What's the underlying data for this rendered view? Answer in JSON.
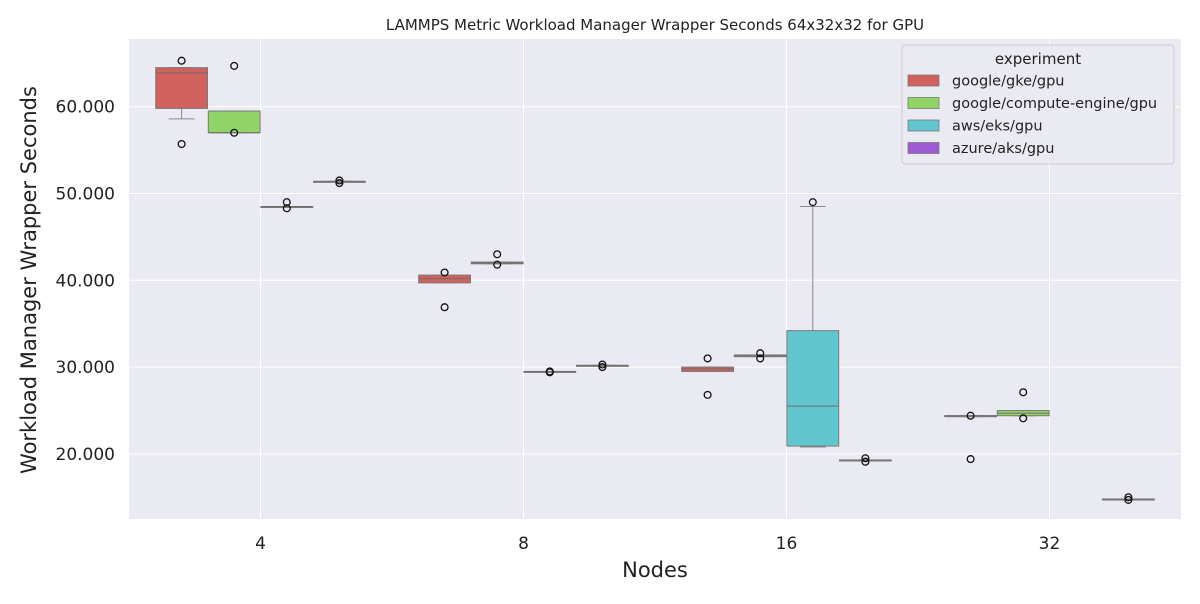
{
  "chart_data": {
    "type": "box",
    "title": "LAMMPS Metric Workload Manager Wrapper Seconds 64x32x32 for GPU",
    "xlabel": "Nodes",
    "ylabel": "Workload Manager Wrapper Seconds",
    "categories": [
      "4",
      "8",
      "16",
      "32"
    ],
    "ylim": [
      12.5,
      67.8
    ],
    "yticks": [
      20,
      30,
      40,
      50,
      60
    ],
    "ytick_labels": [
      "20.000",
      "30.000",
      "40.000",
      "50.000",
      "60.000"
    ],
    "grid": true,
    "legend": {
      "title": "experiment",
      "placement": "top-right"
    },
    "series": [
      {
        "name": "google/gke/gpu",
        "color": "#d1615d",
        "boxes": [
          {
            "category": "4",
            "q1": 59.8,
            "median": 63.9,
            "q3": 64.5,
            "whislo": 58.6,
            "whishi": 64.5,
            "fliers": [
              55.7,
              65.3
            ]
          },
          {
            "category": "8",
            "q1": 39.7,
            "median": 40.2,
            "q3": 40.6,
            "whislo": 39.7,
            "whishi": 40.6,
            "fliers": [
              36.9,
              40.9
            ]
          },
          {
            "category": "16",
            "q1": 29.5,
            "median": 29.8,
            "q3": 30.0,
            "whislo": 29.5,
            "whishi": 30.0,
            "fliers": [
              26.8,
              31.0
            ]
          },
          {
            "category": "32",
            "q1": 24.3,
            "median": 24.4,
            "q3": 24.4,
            "whislo": 24.3,
            "whishi": 24.4,
            "fliers": [
              19.4,
              24.4
            ]
          }
        ]
      },
      {
        "name": "google/compute-engine/gpu",
        "color": "#8fd464",
        "boxes": [
          {
            "category": "4",
            "q1": 57.0,
            "median": 57.0,
            "q3": 59.5,
            "whislo": 57.0,
            "whishi": 59.5,
            "fliers": [
              57.0,
              64.7
            ]
          },
          {
            "category": "8",
            "q1": 41.9,
            "median": 42.0,
            "q3": 42.1,
            "whislo": 41.9,
            "whishi": 42.1,
            "fliers": [
              41.8,
              43.0
            ]
          },
          {
            "category": "16",
            "q1": 31.2,
            "median": 31.3,
            "q3": 31.4,
            "whislo": 31.2,
            "whishi": 31.4,
            "fliers": [
              31.0,
              31.6
            ]
          },
          {
            "category": "32",
            "q1": 24.4,
            "median": 24.7,
            "q3": 25.0,
            "whislo": 24.4,
            "whishi": 25.0,
            "fliers": [
              24.1,
              27.1
            ]
          }
        ]
      },
      {
        "name": "aws/eks/gpu",
        "color": "#62c6cf",
        "boxes": [
          {
            "category": "4",
            "q1": 48.5,
            "median": 48.5,
            "q3": 48.5,
            "whislo": 48.5,
            "whishi": 48.5,
            "fliers": [
              48.3,
              49.0
            ]
          },
          {
            "category": "8",
            "q1": 29.5,
            "median": 29.5,
            "q3": 29.5,
            "whislo": 29.5,
            "whishi": 29.5,
            "fliers": [
              29.4,
              29.5
            ]
          },
          {
            "category": "16",
            "q1": 20.9,
            "median": 25.5,
            "q3": 34.2,
            "whislo": 20.8,
            "whishi": 48.5,
            "fliers": [
              49.0
            ]
          }
        ]
      },
      {
        "name": "azure/aks/gpu",
        "color": "#9e5ad0",
        "boxes": [
          {
            "category": "4",
            "q1": 51.4,
            "median": 51.4,
            "q3": 51.4,
            "whislo": 51.4,
            "whishi": 51.4,
            "fliers": [
              51.2,
              51.5
            ]
          },
          {
            "category": "8",
            "q1": 30.2,
            "median": 30.2,
            "q3": 30.2,
            "whislo": 30.2,
            "whishi": 30.2,
            "fliers": [
              30.0,
              30.3
            ]
          },
          {
            "category": "16",
            "q1": 19.3,
            "median": 19.3,
            "q3": 19.3,
            "whislo": 19.3,
            "whishi": 19.3,
            "fliers": [
              19.1,
              19.5
            ]
          },
          {
            "category": "32",
            "q1": 14.8,
            "median": 14.8,
            "q3": 14.8,
            "whislo": 14.8,
            "whishi": 14.8,
            "fliers": [
              14.7,
              15.0
            ]
          }
        ]
      }
    ]
  }
}
